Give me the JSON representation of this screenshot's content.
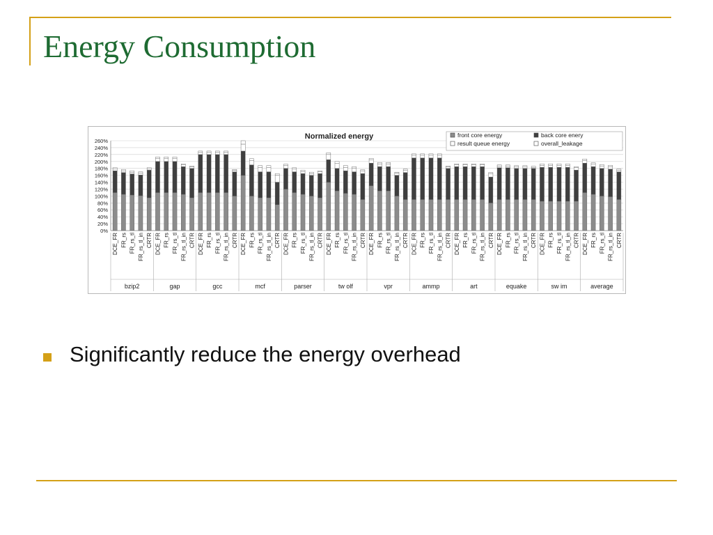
{
  "slide": {
    "title": "Energy Consumption",
    "bullet": "Significantly reduce the energy overhead"
  },
  "colors": {
    "accent": "#d4a017",
    "title": "#1e6b32",
    "front": "#8c8c8c",
    "back": "#3f3f3f"
  },
  "chart_data": {
    "type": "bar",
    "stacked": true,
    "title": "Normalized energy",
    "ylim": [
      0,
      260
    ],
    "yticks": [
      "0%",
      "20%",
      "40%",
      "60%",
      "80%",
      "100%",
      "120%",
      "140%",
      "160%",
      "180%",
      "200%",
      "220%",
      "240%",
      "260%"
    ],
    "grid": true,
    "legend_position": "top-right",
    "groups": [
      "bzip2",
      "gap",
      "gcc",
      "mcf",
      "parser",
      "tw olf",
      "vpr",
      "ammp",
      "art",
      "equake",
      "sw im",
      "average"
    ],
    "configs": [
      "DCE_FR",
      "FR_rs",
      "FR_rs_tl",
      "FR_rs_tl_in",
      "CRTR"
    ],
    "series": [
      {
        "name": "front core energy",
        "values": [
          [
            110,
            105,
            103,
            101,
            95
          ],
          [
            110,
            110,
            110,
            105,
            95
          ],
          [
            110,
            110,
            110,
            110,
            100
          ],
          [
            160,
            100,
            95,
            95,
            75
          ],
          [
            120,
            110,
            105,
            100,
            95
          ],
          [
            140,
            115,
            108,
            105,
            90
          ],
          [
            130,
            115,
            115,
            100,
            90
          ],
          [
            90,
            90,
            90,
            90,
            90
          ],
          [
            90,
            90,
            90,
            90,
            80
          ],
          [
            90,
            90,
            90,
            90,
            90
          ],
          [
            85,
            85,
            85,
            85,
            85
          ],
          [
            110,
            105,
            100,
            98,
            90
          ]
        ]
      },
      {
        "name": "back core enery",
        "values": [
          [
            63,
            63,
            61,
            60,
            80
          ],
          [
            90,
            90,
            90,
            80,
            85
          ],
          [
            110,
            110,
            110,
            110,
            70
          ],
          [
            70,
            90,
            75,
            75,
            65
          ],
          [
            60,
            60,
            60,
            60,
            70
          ],
          [
            65,
            65,
            65,
            65,
            75
          ],
          [
            65,
            70,
            70,
            60,
            78
          ],
          [
            120,
            120,
            120,
            120,
            90
          ],
          [
            95,
            95,
            95,
            95,
            75
          ],
          [
            92,
            92,
            90,
            90,
            90
          ],
          [
            98,
            98,
            98,
            98,
            90
          ],
          [
            85,
            80,
            80,
            80,
            80
          ]
        ]
      },
      {
        "name": "result queue energy",
        "values": [
          [
            5,
            5,
            5,
            5,
            3
          ],
          [
            8,
            8,
            8,
            5,
            4
          ],
          [
            6,
            6,
            6,
            6,
            4
          ],
          [
            20,
            12,
            12,
            12,
            20
          ],
          [
            8,
            8,
            6,
            5,
            5
          ],
          [
            15,
            15,
            10,
            10,
            8
          ],
          [
            10,
            8,
            8,
            6,
            7
          ],
          [
            8,
            8,
            8,
            8,
            4
          ],
          [
            5,
            5,
            5,
            5,
            10
          ],
          [
            5,
            5,
            5,
            5,
            3
          ],
          [
            6,
            6,
            6,
            6,
            7
          ],
          [
            8,
            7,
            7,
            7,
            5
          ]
        ]
      },
      {
        "name": "overall_leakage",
        "values": [
          [
            4,
            4,
            4,
            4,
            4
          ],
          [
            5,
            5,
            5,
            3,
            3
          ],
          [
            4,
            4,
            4,
            4,
            3
          ],
          [
            10,
            6,
            6,
            6,
            5
          ],
          [
            4,
            4,
            4,
            4,
            3
          ],
          [
            5,
            5,
            5,
            5,
            3
          ],
          [
            4,
            4,
            4,
            3,
            3
          ],
          [
            4,
            4,
            4,
            4,
            3
          ],
          [
            3,
            3,
            3,
            3,
            3
          ],
          [
            3,
            3,
            3,
            3,
            3
          ],
          [
            4,
            4,
            4,
            4,
            3
          ],
          [
            4,
            4,
            4,
            4,
            3
          ]
        ]
      }
    ]
  }
}
